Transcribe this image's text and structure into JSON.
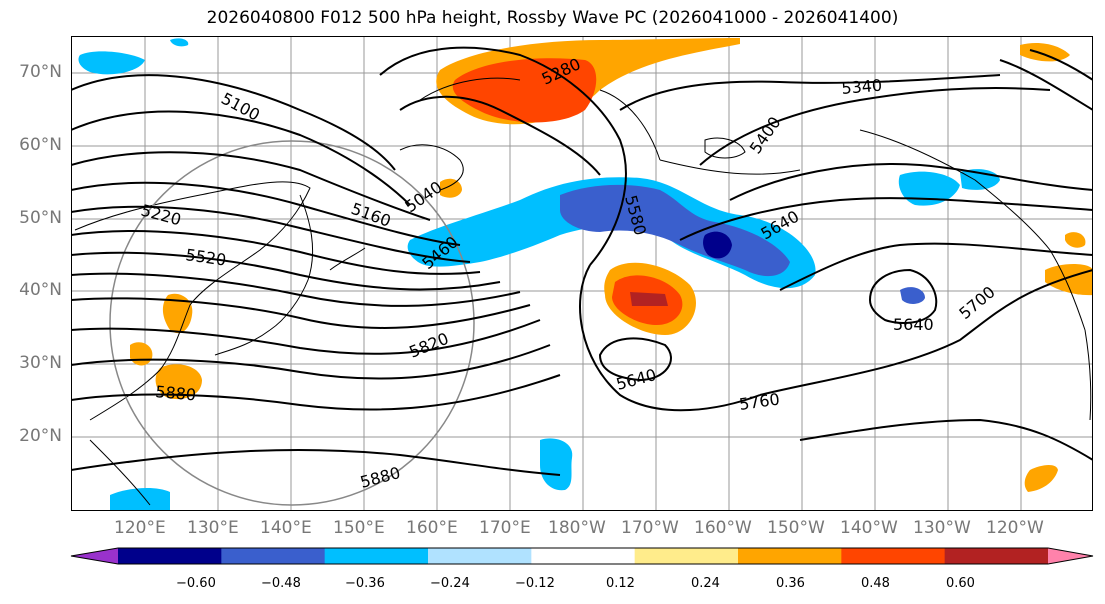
{
  "title": "2026040800 F012 500 hPa height, Rossby Wave PC (2026041000 - 2026041400)",
  "lat_labels": [
    "70°N",
    "60°N",
    "50°N",
    "40°N",
    "30°N",
    "20°N"
  ],
  "lon_labels": [
    "120°E",
    "130°E",
    "140°E",
    "150°E",
    "160°E",
    "170°E",
    "180°W",
    "170°W",
    "160°W",
    "150°W",
    "140°W",
    "130°W",
    "120°W"
  ],
  "contour_labels": [
    "5100",
    "5280",
    "5340",
    "5400",
    "5220",
    "5160",
    "5040",
    "5580",
    "5640",
    "5460",
    "5520",
    "5820",
    "5640",
    "5640",
    "5700",
    "5880",
    "5760",
    "5880"
  ],
  "colorbar": {
    "ticks": [
      "−0.60",
      "−0.48",
      "−0.36",
      "−0.24",
      "−0.12",
      "0.12",
      "0.24",
      "0.36",
      "0.48",
      "0.60"
    ],
    "colors": [
      "#9932cc",
      "#00008b",
      "#3a5fcd",
      "#00bfff",
      "#b0e2ff",
      "#ffffff",
      "#ffec8b",
      "#ffa500",
      "#ff4500",
      "#b22222",
      "#ff82ab"
    ]
  }
}
